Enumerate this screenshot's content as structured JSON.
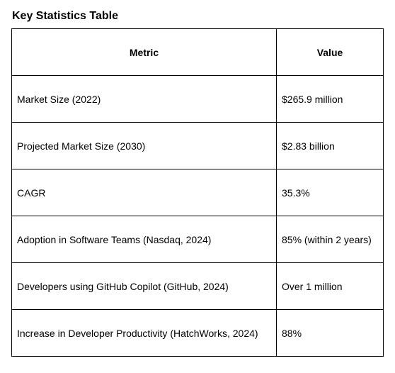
{
  "title": "Key Statistics Table",
  "table": {
    "headers": [
      "Metric",
      "Value"
    ],
    "rows": [
      [
        "Market Size (2022)",
        "$265.9 million"
      ],
      [
        "Projected Market Size (2030)",
        "$2.83 billion"
      ],
      [
        "CAGR",
        "35.3%"
      ],
      [
        "Adoption in Software Teams (Nasdaq, 2024)",
        "85% (within 2 years)"
      ],
      [
        "Developers using GitHub Copilot (GitHub, 2024)",
        "Over 1 million"
      ],
      [
        "Increase in Developer Productivity (HatchWorks, 2024)",
        "88%"
      ]
    ]
  }
}
